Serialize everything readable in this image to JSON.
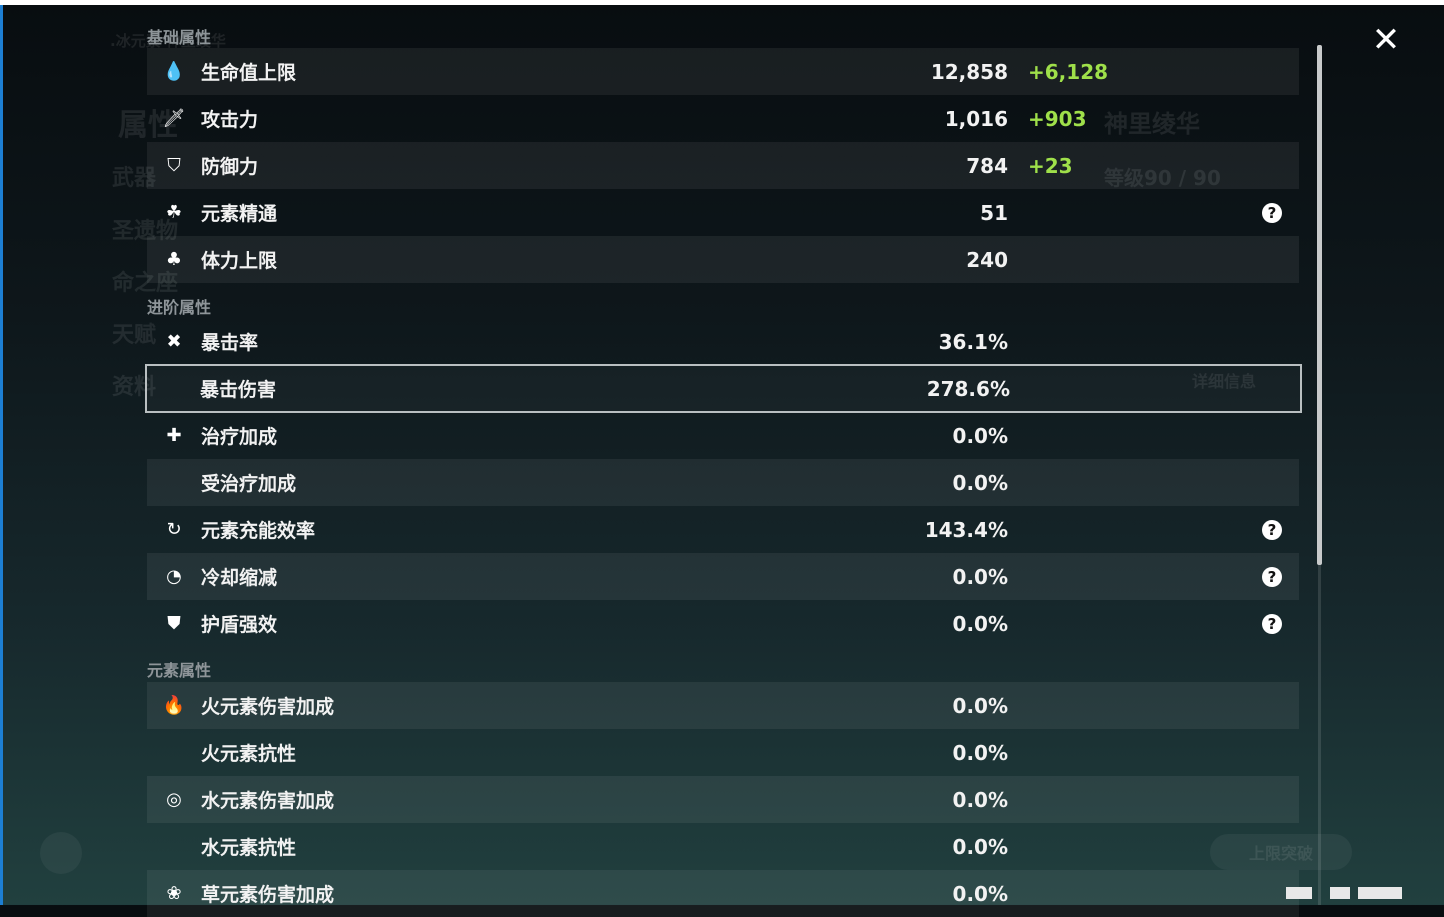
{
  "background": {
    "element_label": ".冰元素 神里绫华",
    "tabs": [
      "属性",
      "武器",
      "圣遗物",
      "命之座",
      "天赋",
      "资料"
    ],
    "character_name": "神里绫华",
    "level": "等级90 / 90",
    "details_button": "详细信息",
    "ascend_button": "上限突破"
  },
  "sections": [
    {
      "title": "基础属性",
      "rows": [
        {
          "icon": "hp-drop-icon",
          "glyph": "💧",
          "label": "生命值上限",
          "value": "12,858",
          "bonus": "+6,128"
        },
        {
          "icon": "sword-icon",
          "glyph": "🗡",
          "label": "攻击力",
          "value": "1,016",
          "bonus": "+903"
        },
        {
          "icon": "shield-icon",
          "glyph": "⛉",
          "label": "防御力",
          "value": "784",
          "bonus": "+23"
        },
        {
          "icon": "elemental-mastery-icon",
          "glyph": "☘",
          "label": "元素精通",
          "value": "51",
          "help": true
        },
        {
          "icon": "stamina-icon",
          "glyph": "♣",
          "label": "体力上限",
          "value": "240"
        }
      ]
    },
    {
      "title": "进阶属性",
      "rows": [
        {
          "icon": "crit-rate-icon",
          "glyph": "✖",
          "label": "暴击率",
          "value": "36.1%"
        },
        {
          "icon": "crit-dmg-icon",
          "glyph": "",
          "label": "暴击伤害",
          "value": "278.6%",
          "selected": true
        },
        {
          "icon": "healing-cross-icon",
          "glyph": "✚",
          "label": "治疗加成",
          "value": "0.0%"
        },
        {
          "icon": "",
          "glyph": "",
          "label": "受治疗加成",
          "value": "0.0%"
        },
        {
          "icon": "energy-recharge-icon",
          "glyph": "↻",
          "label": "元素充能效率",
          "value": "143.4%",
          "help": true
        },
        {
          "icon": "cooldown-icon",
          "glyph": "◔",
          "label": "冷却缩减",
          "value": "0.0%",
          "help": true
        },
        {
          "icon": "shield-strength-icon",
          "glyph": "⛊",
          "label": "护盾强效",
          "value": "0.0%",
          "help": true
        }
      ]
    },
    {
      "title": "元素属性",
      "rows": [
        {
          "icon": "pyro-icon",
          "glyph": "🔥",
          "label": "火元素伤害加成",
          "value": "0.0%"
        },
        {
          "icon": "",
          "glyph": "",
          "label": "火元素抗性",
          "value": "0.0%"
        },
        {
          "icon": "hydro-icon",
          "glyph": "◎",
          "label": "水元素伤害加成",
          "value": "0.0%"
        },
        {
          "icon": "",
          "glyph": "",
          "label": "水元素抗性",
          "value": "0.0%"
        },
        {
          "icon": "dendro-icon",
          "glyph": "❀",
          "label": "草元素伤害加成",
          "value": "0.0%"
        }
      ]
    }
  ],
  "help_glyph": "?",
  "close_glyph": "✕",
  "colors": {
    "bonus": "#9fe04a",
    "selected_outline": "#b9bfc1"
  }
}
